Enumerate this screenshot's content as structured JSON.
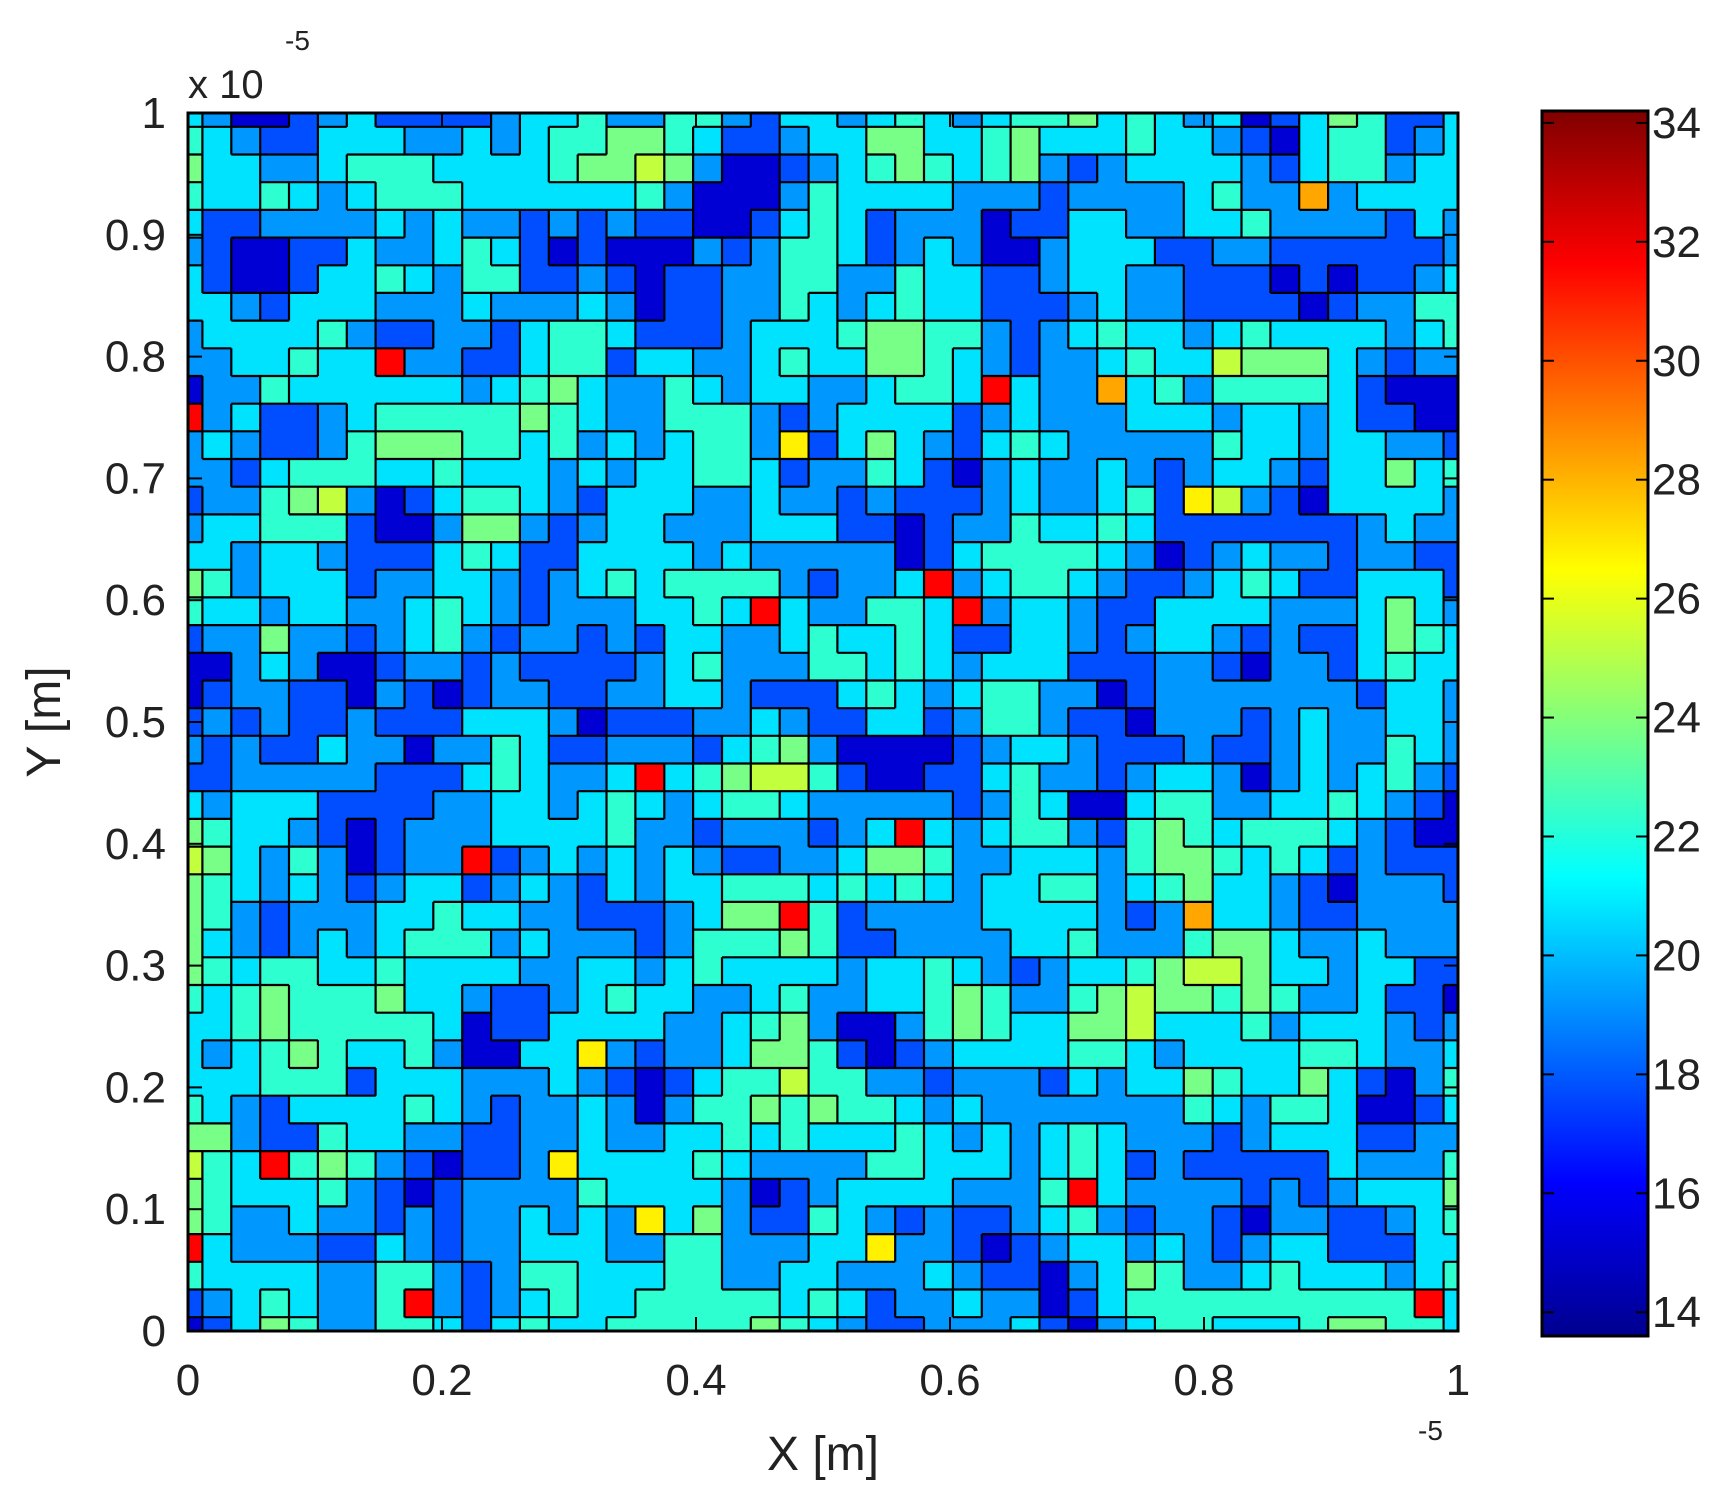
{
  "chart_data": {
    "type": "heatmap",
    "subtype": "filled-contour",
    "xlabel": "X [m]",
    "ylabel": "Y [m]",
    "x_exponent_label": "-5",
    "y_exponent_label": "x 10",
    "y_exponent_power": "-5",
    "xlim": [
      0,
      1
    ],
    "ylim": [
      0,
      1
    ],
    "xticks": [
      0,
      0.2,
      0.4,
      0.6,
      0.8,
      1
    ],
    "xtick_labels": [
      "0",
      "0.2",
      "0.4",
      "0.6",
      "0.8",
      "1"
    ],
    "yticks": [
      0,
      0.1,
      0.2,
      0.3,
      0.4,
      0.5,
      0.6,
      0.7,
      0.8,
      0.9,
      1
    ],
    "ytick_labels": [
      "0",
      "0.1",
      "0.2",
      "0.3",
      "0.4",
      "0.5",
      "0.6",
      "0.7",
      "0.8",
      "0.9",
      "1"
    ],
    "colorbar": {
      "min": 13.6,
      "max": 34.2,
      "ticks": [
        14,
        16,
        18,
        20,
        22,
        24,
        26,
        28,
        30,
        32,
        34
      ],
      "tick_labels": [
        "14",
        "16",
        "18",
        "20",
        "22",
        "24",
        "26",
        "28",
        "30",
        "32",
        "34"
      ],
      "colormap": "jet"
    },
    "contour_levels": [
      17,
      18.5,
      20,
      21.5,
      23,
      24.5,
      26,
      27.5,
      29
    ],
    "grid_size": 45,
    "field_stats": {
      "mean": 20,
      "std": 1.8,
      "min": 13.6,
      "max": 34.2
    },
    "grid": false,
    "legend": "none"
  }
}
